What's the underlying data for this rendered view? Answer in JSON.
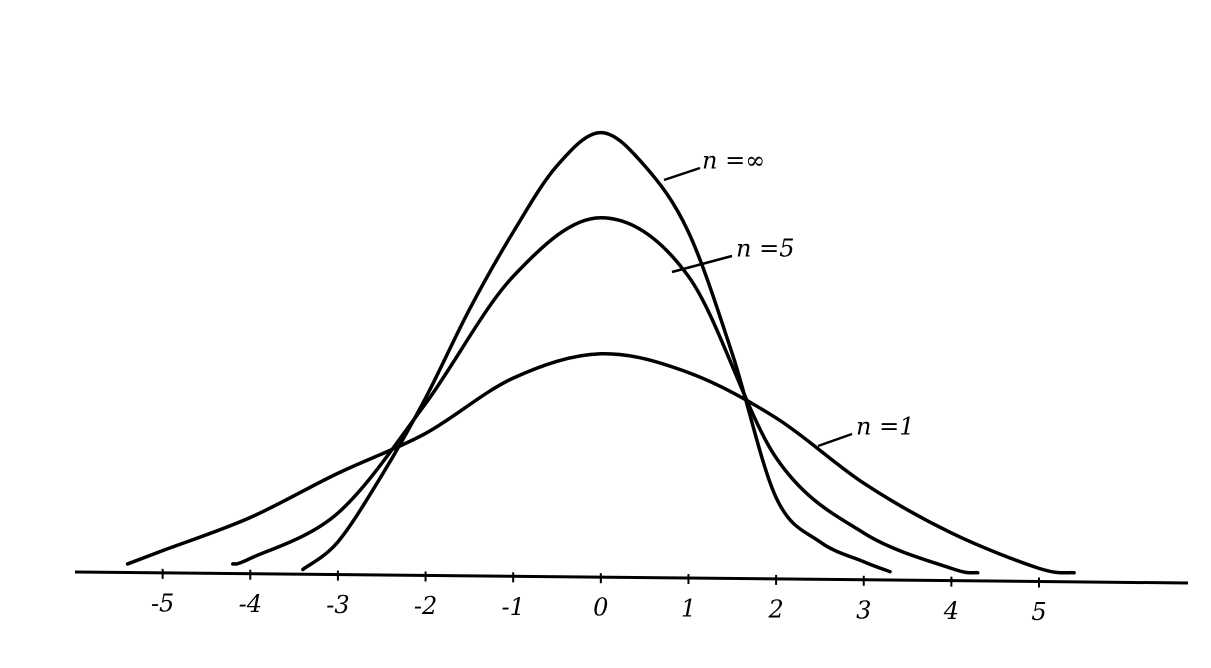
{
  "chart_data": {
    "type": "line",
    "xlim": [
      -6,
      6.7
    ],
    "ylim": [
      0,
      0.5
    ],
    "xticks": [
      -5,
      -4,
      -3,
      -2,
      -1,
      0,
      1,
      2,
      3,
      4,
      5
    ],
    "color": "#000000",
    "series": [
      {
        "name": "n =∞",
        "color": "#000000",
        "x": [
          -3.4,
          -3,
          -2.5,
          -2,
          -1.5,
          -1,
          -0.5,
          0,
          0.5,
          1,
          1.5,
          2,
          2.5,
          3,
          3.3
        ],
        "values": [
          0.005,
          0.03,
          0.09,
          0.16,
          0.24,
          0.31,
          0.37,
          0.4,
          0.37,
          0.31,
          0.2,
          0.07,
          0.03,
          0.012,
          0.003
        ]
      },
      {
        "name": "n =5",
        "color": "#000000",
        "x": [
          -4.2,
          -4,
          -3,
          -2,
          -1,
          0,
          1,
          2,
          3,
          4,
          4.3
        ],
        "values": [
          0.01,
          0.015,
          0.056,
          0.155,
          0.27,
          0.323,
          0.27,
          0.106,
          0.038,
          0.006,
          0.002
        ]
      },
      {
        "name": "n =1",
        "color": "#000000",
        "x": [
          -5.4,
          -5,
          -4,
          -3,
          -2,
          -1,
          0,
          1,
          2,
          3,
          4,
          5,
          5.4
        ],
        "values": [
          0.01,
          0.022,
          0.052,
          0.092,
          0.128,
          0.178,
          0.2,
          0.183,
          0.142,
          0.083,
          0.038,
          0.006,
          0.002
        ]
      }
    ]
  }
}
